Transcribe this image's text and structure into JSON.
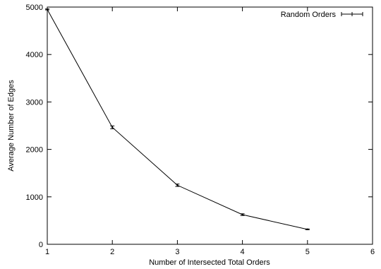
{
  "chart_data": {
    "type": "line",
    "title": "",
    "xlabel": "Number of Intersected Total Orders",
    "ylabel": "Average Number of Edges",
    "xlim": [
      1,
      6
    ],
    "ylim": [
      0,
      5000
    ],
    "xticks": [
      1,
      2,
      3,
      4,
      5,
      6
    ],
    "yticks": [
      0,
      1000,
      2000,
      3000,
      4000,
      5000
    ],
    "xtick_labels": [
      "1",
      "2",
      "3",
      "4",
      "5",
      "6"
    ],
    "ytick_labels": [
      "0",
      "1000",
      "2000",
      "3000",
      "4000",
      "5000"
    ],
    "grid": false,
    "legend_position": "top-right",
    "series": [
      {
        "name": "Random Orders",
        "x": [
          1,
          2,
          3,
          4,
          5
        ],
        "y": [
          4950,
          2465,
          1245,
          625,
          315
        ],
        "err": [
          10,
          30,
          25,
          18,
          8
        ],
        "color": "#000000",
        "marker": "errorbar"
      }
    ]
  }
}
